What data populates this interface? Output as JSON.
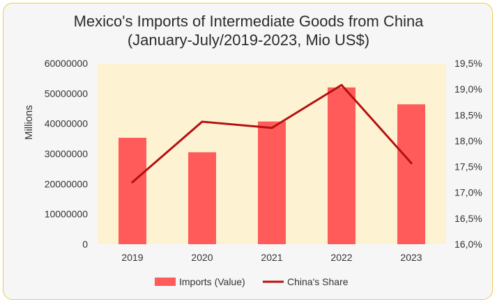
{
  "chart_data": {
    "type": "bar+line",
    "title_line1": "Mexico's Imports of Intermediate Goods from China",
    "title_line2": "(January-July/2019-2023, Mio US$)",
    "ylabel": "Millions",
    "categories": [
      "2019",
      "2020",
      "2021",
      "2022",
      "2023"
    ],
    "y_left": {
      "ylim": [
        0,
        60000000
      ],
      "ticks": [
        "0",
        "10000000",
        "20000000",
        "30000000",
        "40000000",
        "50000000",
        "60000000"
      ]
    },
    "y_right": {
      "ylim": [
        16.0,
        19.5
      ],
      "ticks": [
        "16,0%",
        "16,5%",
        "17,0%",
        "17,5%",
        "18,0%",
        "18,5%",
        "19,0%",
        "19,5%"
      ]
    },
    "series": [
      {
        "name": "Imports (Value)",
        "type": "bar",
        "axis": "left",
        "values": [
          35300000,
          30500000,
          40700000,
          52000000,
          46400000
        ]
      },
      {
        "name": "China's Share",
        "type": "line",
        "axis": "right",
        "values": [
          17.2,
          18.37,
          18.25,
          19.08,
          17.57
        ]
      }
    ],
    "colors": {
      "bar": "#ff5b5b",
      "line": "#b51010",
      "plot_bg": "#fdf3d3"
    },
    "legend": "bottom"
  }
}
